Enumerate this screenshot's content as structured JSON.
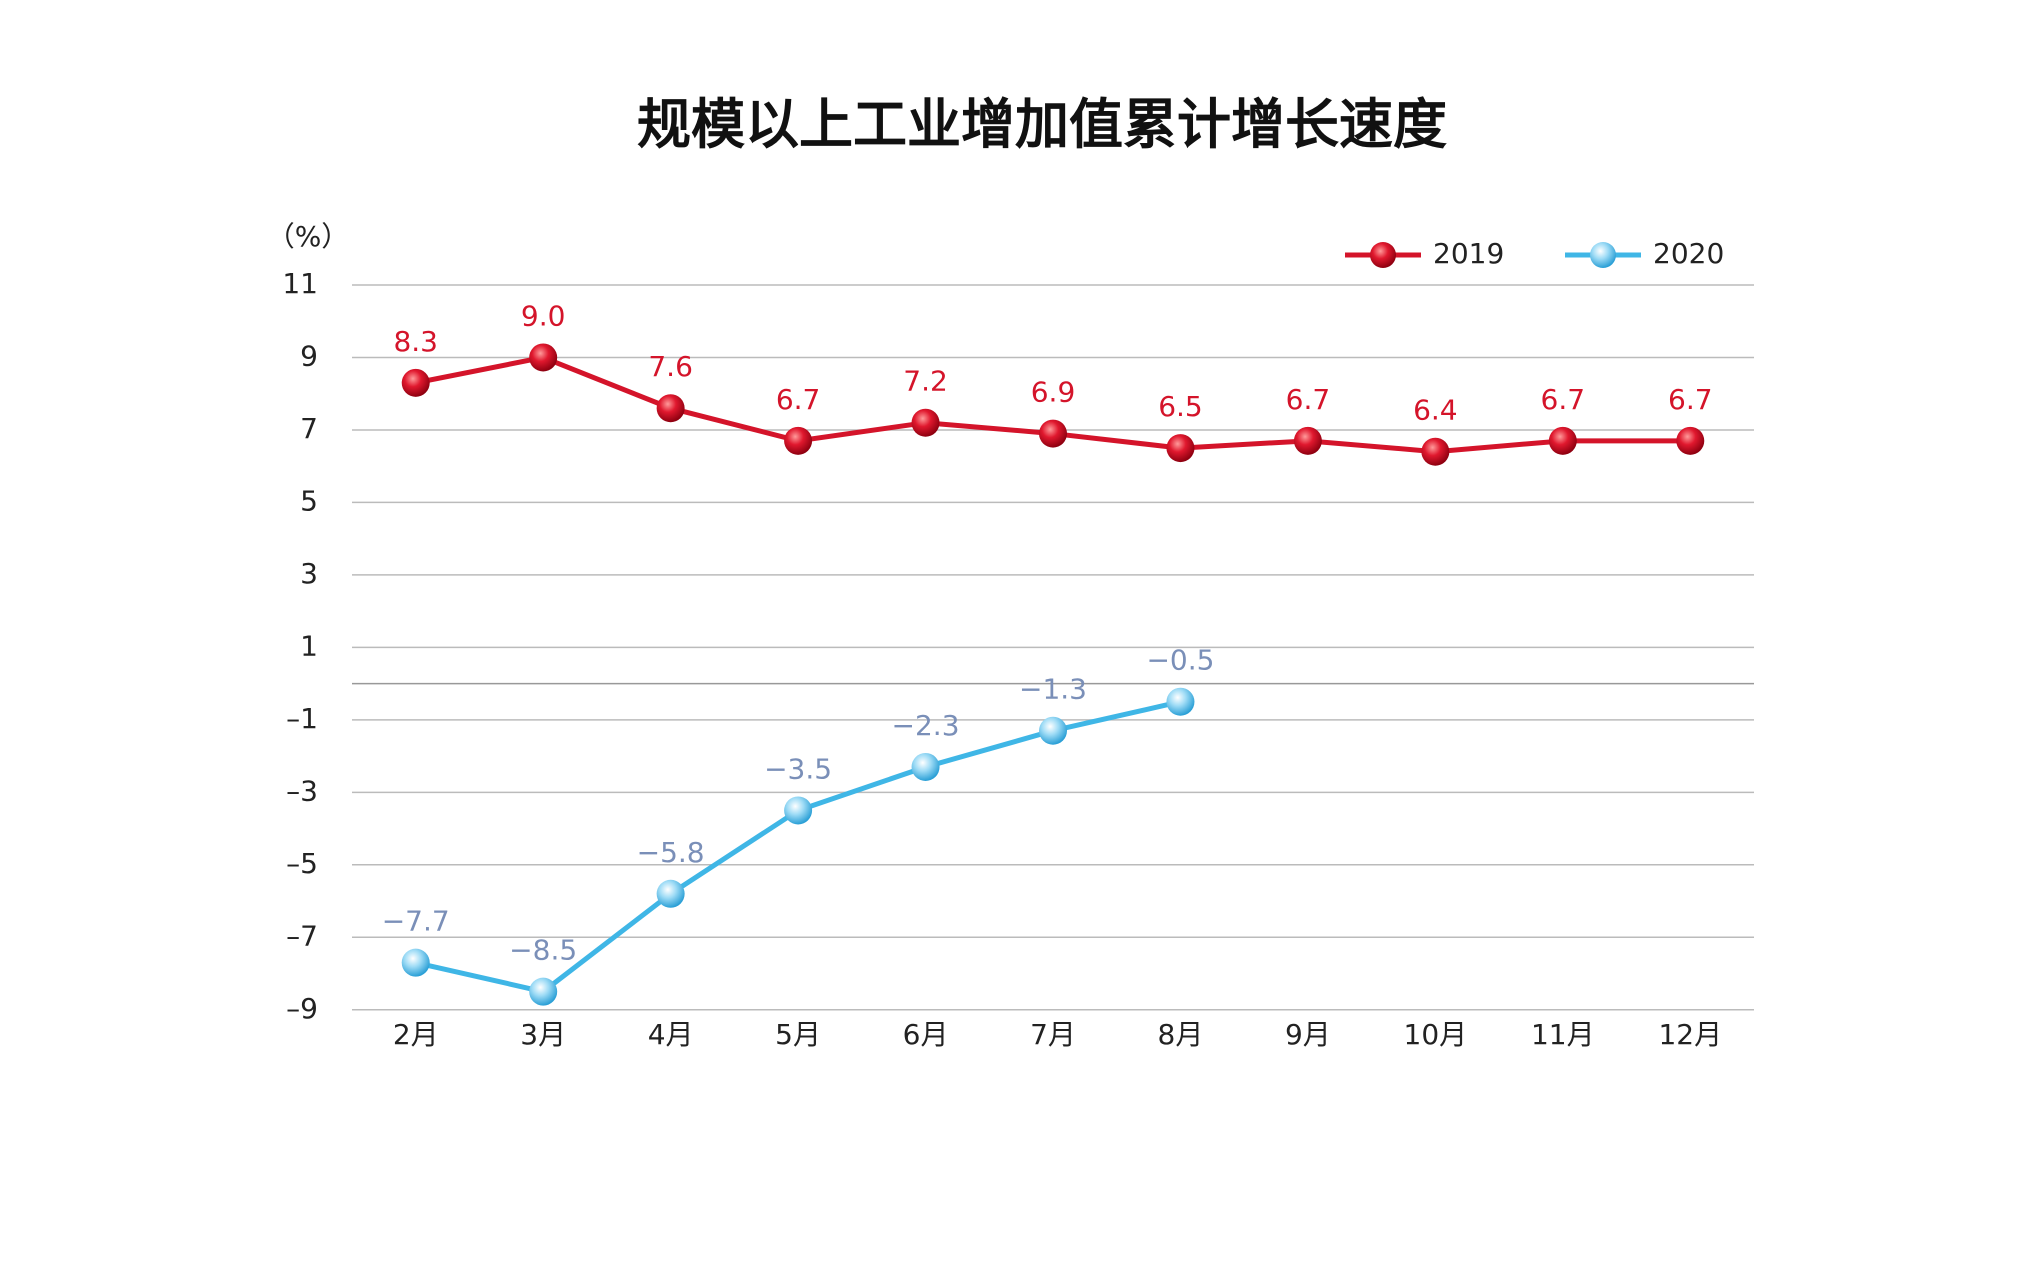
{
  "chart_data": {
    "type": "line",
    "title": "规模以上工业增加值累计增长速度",
    "y_label": "（%）",
    "categories": [
      "2月",
      "3月",
      "4月",
      "5月",
      "6月",
      "7月",
      "8月",
      "9月",
      "10月",
      "11月",
      "12月"
    ],
    "series": [
      {
        "name": "2019",
        "color": "#d4142a",
        "values": [
          8.3,
          9.0,
          7.6,
          6.7,
          7.2,
          6.9,
          6.5,
          6.7,
          6.4,
          6.7,
          6.7
        ],
        "value_labels": [
          "8.3",
          "9.0",
          "7.6",
          "6.7",
          "7.2",
          "6.9",
          "6.5",
          "6.7",
          "6.4",
          "6.7",
          "6.7"
        ],
        "label_color": "#d4142a"
      },
      {
        "name": "2020",
        "color": "#3fb6e6",
        "values": [
          -7.7,
          -8.5,
          -5.8,
          -3.5,
          -2.3,
          -1.3,
          -0.5,
          null,
          null,
          null,
          null
        ],
        "value_labels": [
          "−7.7",
          "−8.5",
          "−5.8",
          "−3.5",
          "−2.3",
          "−1.3",
          "−0.5",
          null,
          null,
          null,
          null
        ],
        "label_color": "#7a8fb8"
      }
    ],
    "ylim": [
      -10,
      11
    ],
    "yticks": [
      {
        "value": 11,
        "label": "11"
      },
      {
        "value": 9,
        "label": "9"
      },
      {
        "value": 7,
        "label": "7"
      },
      {
        "value": 5,
        "label": "5"
      },
      {
        "value": 3,
        "label": "3"
      },
      {
        "value": 1,
        "label": "1"
      },
      {
        "value": -1,
        "label": "–1"
      },
      {
        "value": -3,
        "label": "–3"
      },
      {
        "value": -5,
        "label": "–5"
      },
      {
        "value": -7,
        "label": "–7"
      },
      {
        "value": -9,
        "label": "–9"
      }
    ],
    "grid": true,
    "legend": "top-right"
  }
}
